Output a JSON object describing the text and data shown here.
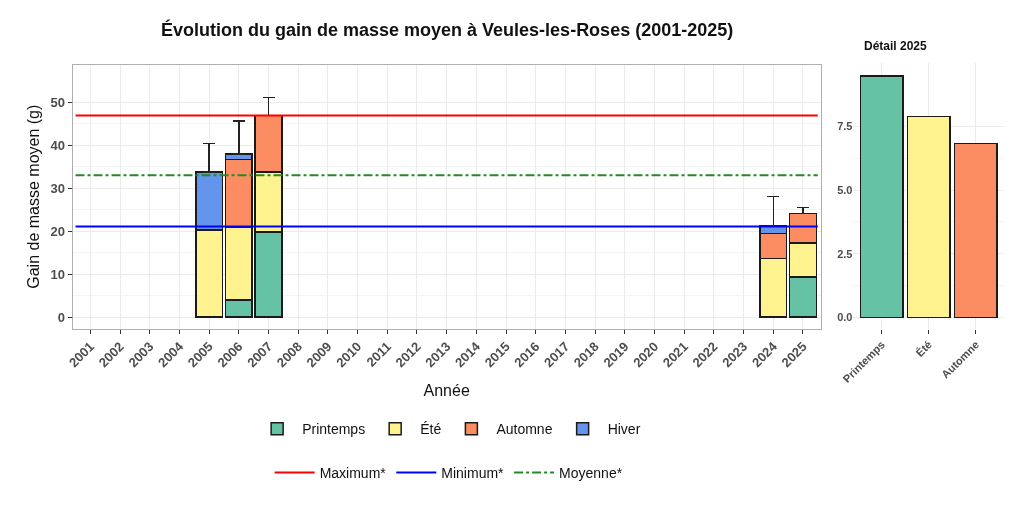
{
  "chart_data": [
    {
      "type": "bar",
      "title": "Évolution du gain de masse moyen à Veules-les-Roses (2001-2025)",
      "xlabel": "Année",
      "ylabel": "Gain de masse moyen (g)",
      "categories": [
        "2001",
        "2002",
        "2003",
        "2004",
        "2005",
        "2006",
        "2007",
        "2008",
        "2009",
        "2010",
        "2011",
        "2012",
        "2013",
        "2014",
        "2015",
        "2016",
        "2017",
        "2018",
        "2019",
        "2020",
        "2021",
        "2022",
        "2023",
        "2024",
        "2025"
      ],
      "stacked": true,
      "ylim": [
        -2.7,
        58.7
      ],
      "yticks": [
        0,
        10,
        20,
        30,
        40,
        50
      ],
      "grid": true,
      "legend": "bottom",
      "series": [
        {
          "name": "Printemps",
          "color": "#66c2a5",
          "values": [
            null,
            null,
            null,
            null,
            null,
            4.0,
            19.8,
            null,
            null,
            null,
            null,
            null,
            null,
            null,
            null,
            null,
            null,
            null,
            null,
            null,
            null,
            null,
            null,
            null,
            9.4
          ]
        },
        {
          "name": "Été",
          "color": "#fff38f",
          "values": [
            null,
            null,
            null,
            null,
            20.3,
            17.0,
            14.0,
            null,
            null,
            null,
            null,
            null,
            null,
            null,
            null,
            null,
            null,
            null,
            null,
            null,
            null,
            null,
            null,
            13.6,
            7.9
          ]
        },
        {
          "name": "Automne",
          "color": "#fc8d62",
          "values": [
            null,
            null,
            null,
            null,
            null,
            15.7,
            13.1,
            null,
            null,
            null,
            null,
            null,
            null,
            null,
            null,
            null,
            null,
            null,
            null,
            null,
            null,
            null,
            null,
            5.8,
            6.8
          ],
          "errors": [
            null,
            null,
            null,
            null,
            null,
            null,
            [
              46.9,
              51.0
            ],
            null,
            null,
            null,
            null,
            null,
            null,
            null,
            null,
            null,
            null,
            null,
            null,
            null,
            null,
            null,
            null,
            null,
            [
              24.1,
              25.5
            ]
          ]
        },
        {
          "name": "Hiver",
          "color": "#6495ed",
          "values": [
            null,
            null,
            null,
            null,
            13.5,
            1.2,
            null,
            null,
            null,
            null,
            null,
            null,
            null,
            null,
            null,
            null,
            null,
            null,
            null,
            null,
            null,
            null,
            null,
            1.8,
            null
          ],
          "errors": [
            null,
            null,
            null,
            null,
            [
              33.8,
              40.4
            ],
            [
              37.9,
              45.6
            ],
            null,
            null,
            null,
            null,
            null,
            null,
            null,
            null,
            null,
            null,
            null,
            null,
            null,
            null,
            null,
            null,
            null,
            [
              21.2,
              28.0
            ],
            null
          ]
        }
      ],
      "ref_lines": [
        {
          "axis": "y",
          "value": 46.9,
          "label": "Maximum*",
          "color": "#ff0000",
          "line_style": "solid"
        },
        {
          "axis": "y",
          "value": 21.1,
          "label": "Minimum*",
          "color": "#0000ff",
          "line_style": "solid"
        },
        {
          "axis": "y",
          "value": 33.0,
          "label": "Moyenne*",
          "color": "#228b22",
          "line_style": "dashdot"
        }
      ]
    },
    {
      "type": "bar",
      "title": "Détail 2025",
      "categories": [
        "Printemps",
        "Été",
        "Automne"
      ],
      "values": [
        9.47,
        7.89,
        6.83
      ],
      "colors": [
        "#66c2a5",
        "#fff38f",
        "#fc8d62"
      ],
      "ylim": [
        -0.45,
        10.0
      ],
      "yticks": [
        {
          "value": 0,
          "label": "0.0"
        },
        {
          "value": 2.5,
          "label": "2.5"
        },
        {
          "value": 5,
          "label": "5.0"
        },
        {
          "value": 7.5,
          "label": "7.5"
        }
      ],
      "grid": true
    }
  ]
}
